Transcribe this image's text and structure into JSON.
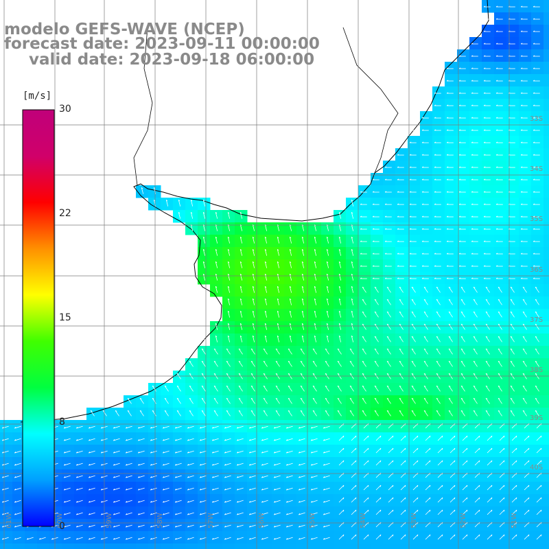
{
  "title": {
    "line1": "modelo GEFS-WAVE (NCEP)",
    "line2": "forecast date: 2023-09-11 00:00:00",
    "line3": "valid date: 2023-09-18 06:00:00"
  },
  "colorbar": {
    "unit": "[m/s]",
    "min": 0,
    "max": 30,
    "tick_labels": [
      "30",
      "22",
      "15",
      "8",
      "0"
    ],
    "tick_values": [
      30,
      22.5,
      15,
      7.5,
      0
    ],
    "colors": [
      "#0000ff",
      "#00a0ff",
      "#00ffff",
      "#00ff40",
      "#40ff00",
      "#ffff00",
      "#ff9000",
      "#ff0000",
      "#d0006a",
      "#c0007a"
    ]
  },
  "grid": {
    "lat_labels": [
      "33S",
      "34S",
      "35S",
      "36S",
      "37S",
      "38S",
      "39S",
      "40S"
    ],
    "lon_labels": [
      "61W",
      "60W",
      "59W",
      "58W",
      "57W",
      "56W",
      "55W",
      "54W",
      "53W",
      "52W",
      "51W"
    ]
  },
  "colors": {
    "land": "#ffffff",
    "coast": "#000000",
    "grid": "#7a7a7a",
    "arrow": "#ffffff",
    "title": "#8a8a8a"
  }
}
